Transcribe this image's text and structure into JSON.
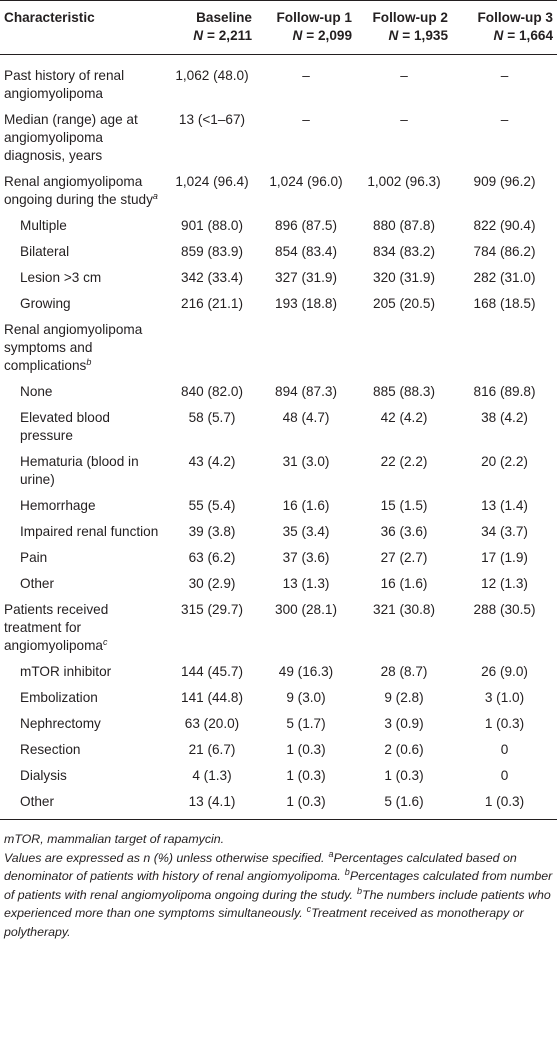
{
  "table": {
    "header": [
      {
        "label": "Characteristic"
      },
      {
        "label": "Baseline",
        "n_symbol": "N",
        "n_value": "= 2,211"
      },
      {
        "label": "Follow-up 1",
        "n_symbol": "N",
        "n_value": "= 2,099"
      },
      {
        "label": "Follow-up 2",
        "n_symbol": "N",
        "n_value": "= 1,935"
      },
      {
        "label": "Follow-up 3",
        "n_symbol": "N",
        "n_value": "= 1,664"
      }
    ],
    "rows": [
      {
        "label": "Past history of renal angiomyolipoma",
        "indent": false,
        "cells": [
          "1,062 (48.0)",
          "–",
          "–",
          "–"
        ]
      },
      {
        "label": "Median (range) age at angiomyolipoma diagnosis, years",
        "indent": false,
        "cells": [
          "13 (<1–67)",
          "–",
          "–",
          "–"
        ]
      },
      {
        "label": "Renal angiomyolipoma ongoing during the study",
        "mark": "a",
        "indent": false,
        "cells": [
          "1,024 (96.4)",
          "1,024 (96.0)",
          "1,002 (96.3)",
          "909 (96.2)"
        ]
      },
      {
        "label": "Multiple",
        "indent": true,
        "cells": [
          "901 (88.0)",
          "896 (87.5)",
          "880 (87.8)",
          "822 (90.4)"
        ]
      },
      {
        "label": "Bilateral",
        "indent": true,
        "cells": [
          "859 (83.9)",
          "854 (83.4)",
          "834 (83.2)",
          "784 (86.2)"
        ]
      },
      {
        "label": "Lesion >3 cm",
        "indent": true,
        "cells": [
          "342 (33.4)",
          "327 (31.9)",
          "320 (31.9)",
          "282 (31.0)"
        ]
      },
      {
        "label": "Growing",
        "indent": true,
        "cells": [
          "216 (21.1)",
          "193 (18.8)",
          "205 (20.5)",
          "168 (18.5)"
        ]
      },
      {
        "label": "Renal angiomyolipoma symptoms and complications",
        "mark": "b",
        "indent": false
      },
      {
        "label": "None",
        "indent": true,
        "cells": [
          "840 (82.0)",
          "894 (87.3)",
          "885 (88.3)",
          "816 (89.8)"
        ]
      },
      {
        "label": "Elevated blood pressure",
        "indent": true,
        "cells": [
          "58 (5.7)",
          "48 (4.7)",
          "42 (4.2)",
          "38 (4.2)"
        ]
      },
      {
        "label": "Hematuria (blood in urine)",
        "indent": true,
        "cells": [
          "43 (4.2)",
          "31 (3.0)",
          "22 (2.2)",
          "20 (2.2)"
        ]
      },
      {
        "label": "Hemorrhage",
        "indent": true,
        "cells": [
          "55 (5.4)",
          "16 (1.6)",
          "15 (1.5)",
          "13 (1.4)"
        ]
      },
      {
        "label": "Impaired renal function",
        "indent": true,
        "cells": [
          "39 (3.8)",
          "35 (3.4)",
          "36 (3.6)",
          "34 (3.7)"
        ]
      },
      {
        "label": "Pain",
        "indent": true,
        "cells": [
          "63 (6.2)",
          "37 (3.6)",
          "27 (2.7)",
          "17 (1.9)"
        ]
      },
      {
        "label": "Other",
        "indent": true,
        "cells": [
          "30 (2.9)",
          "13 (1.3)",
          "16 (1.6)",
          "12 (1.3)"
        ]
      },
      {
        "label": "Patients received treatment for angiomyolipoma",
        "mark": "c",
        "indent": false,
        "cells": [
          "315 (29.7)",
          "300 (28.1)",
          "321 (30.8)",
          "288 (30.5)"
        ]
      },
      {
        "label": "mTOR inhibitor",
        "indent": true,
        "cells": [
          "144 (45.7)",
          "49 (16.3)",
          "28 (8.7)",
          "26 (9.0)"
        ]
      },
      {
        "label": "Embolization",
        "indent": true,
        "cells": [
          "141 (44.8)",
          "9 (3.0)",
          "9 (2.8)",
          "3 (1.0)"
        ]
      },
      {
        "label": "Nephrectomy",
        "indent": true,
        "cells": [
          "63 (20.0)",
          "5 (1.7)",
          "3 (0.9)",
          "1 (0.3)"
        ]
      },
      {
        "label": "Resection",
        "indent": true,
        "cells": [
          "21 (6.7)",
          "1 (0.3)",
          "2 (0.6)",
          "0"
        ]
      },
      {
        "label": "Dialysis",
        "indent": true,
        "cells": [
          "4 (1.3)",
          "1 (0.3)",
          "1 (0.3)",
          "0"
        ]
      },
      {
        "label": "Other",
        "indent": true,
        "cells": [
          "13 (4.1)",
          "1 (0.3)",
          "5 (1.6)",
          "1 (0.3)"
        ]
      }
    ]
  },
  "footer": {
    "abbreviation": "mTOR, mammalian target of rapamycin.",
    "intro": "Values are expressed as n (%) unless otherwise specified.",
    "footnotes": [
      {
        "mark": "a",
        "text": "Percentages calculated based on denominator of patients with history of renal angiomyolipoma."
      },
      {
        "mark": "b",
        "text": "Percentages calculated from number of patients with renal angiomyolipoma ongoing during the study."
      },
      {
        "mark": "b",
        "text": "The numbers include patients who experienced more than one symptoms simultaneously."
      },
      {
        "mark": "c",
        "text": "Treatment received as monotherapy or polytherapy."
      }
    ]
  }
}
